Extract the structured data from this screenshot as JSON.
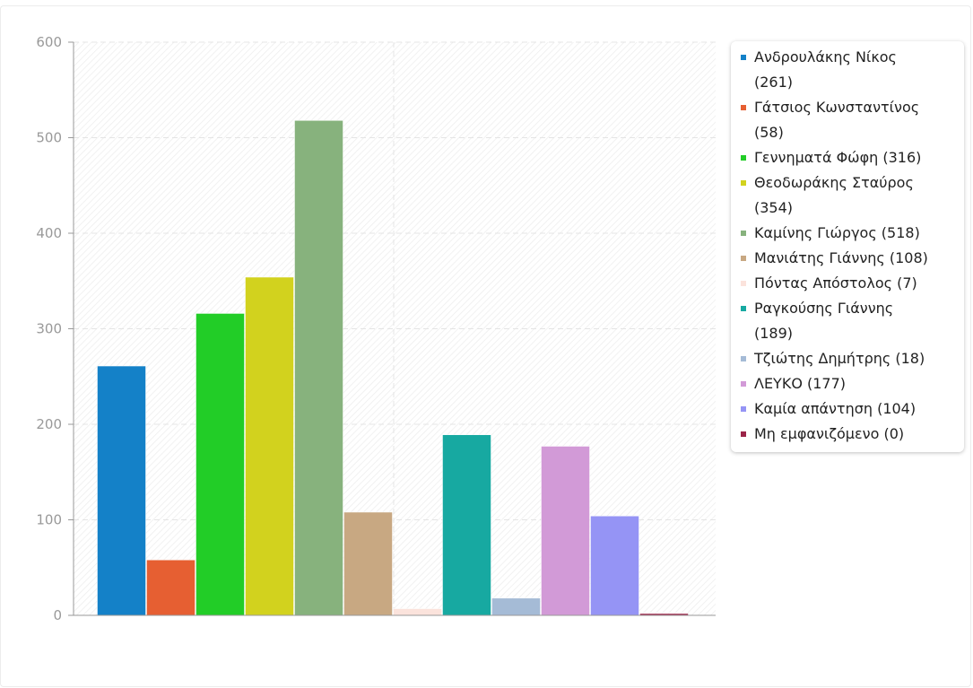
{
  "chart_data": {
    "type": "bar",
    "title": "",
    "xlabel": "",
    "ylabel": "",
    "ylim": [
      0,
      600
    ],
    "yticks": [
      0,
      100,
      200,
      300,
      400,
      500,
      600
    ],
    "grid": true,
    "legend_position": "right",
    "series": [
      {
        "name": "Ανδρουλάκης Νίκος (261)",
        "value": 261,
        "color": "#1481c8"
      },
      {
        "name": "Γάτσιος Κωνσταντίνος (58)",
        "value": 58,
        "color": "#e65f32"
      },
      {
        "name": "Γεννηματά Φώφη (316)",
        "value": 316,
        "color": "#22cd27"
      },
      {
        "name": "Θεοδωράκης Σταύρος (354)",
        "value": 354,
        "color": "#d2d21e"
      },
      {
        "name": "Καμίνης Γιώργος (518)",
        "value": 518,
        "color": "#87b27d"
      },
      {
        "name": "Μανιάτης Γιάννης (108)",
        "value": 108,
        "color": "#c8a882"
      },
      {
        "name": "Πόντας Απόστολος (7)",
        "value": 7,
        "color": "#fbe3dc"
      },
      {
        "name": "Ραγκούσης Γιάννης (189)",
        "value": 189,
        "color": "#17a9a1"
      },
      {
        "name": "Τζιώτης Δημήτρης (18)",
        "value": 18,
        "color": "#a5bbd6"
      },
      {
        "name": "ΛΕΥΚΟ (177)",
        "value": 177,
        "color": "#d29ad7"
      },
      {
        "name": "Καμία απάντηση (104)",
        "value": 104,
        "color": "#9594f5"
      },
      {
        "name": "Μη εμφανιζόμενο (0)",
        "value": 0,
        "color": "#9b2448"
      }
    ]
  }
}
